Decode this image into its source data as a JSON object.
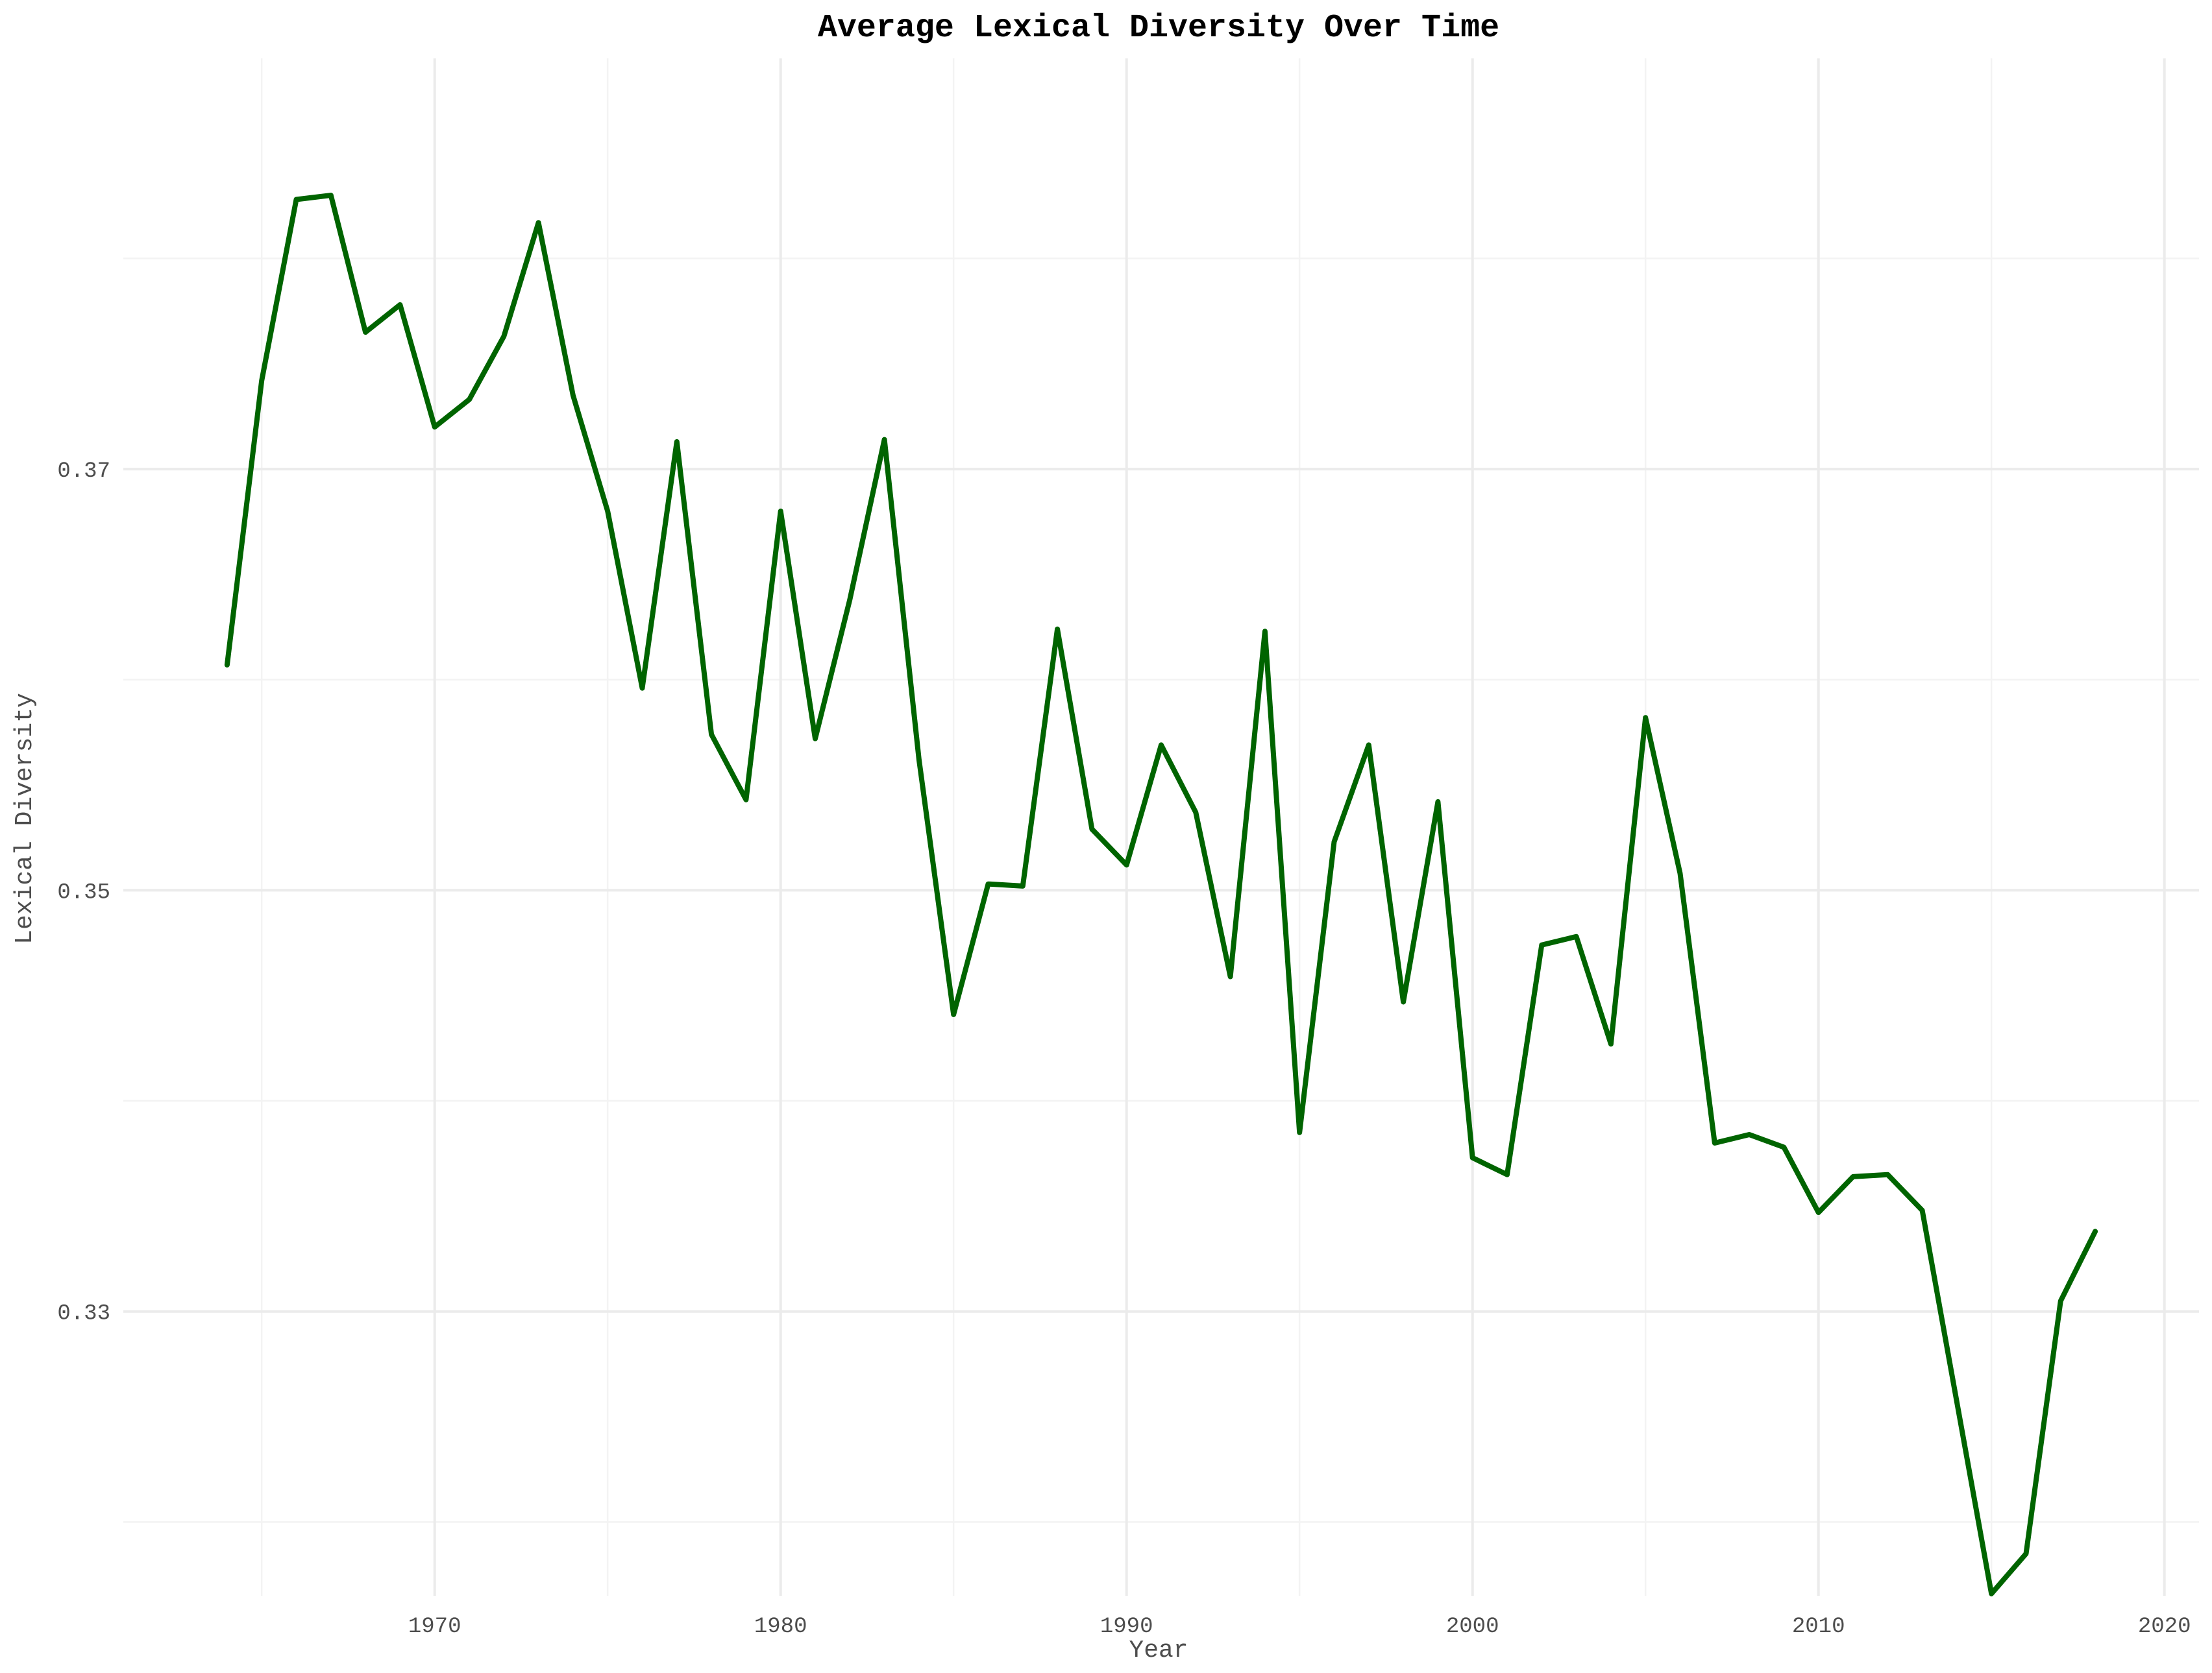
{
  "chart_data": {
    "type": "line",
    "title": "Average Lexical Diversity Over Time",
    "xlabel": "Year",
    "ylabel": "Lexical Diversity",
    "xlim": [
      1961,
      2021
    ],
    "ylim": [
      0.3165,
      0.3895
    ],
    "x_ticks": [
      1970,
      1980,
      1990,
      2000,
      2010,
      2020
    ],
    "x_tick_labels": [
      "1970",
      "1980",
      "1990",
      "2000",
      "2010",
      "2020"
    ],
    "y_ticks": [
      0.33,
      0.35,
      0.37
    ],
    "y_tick_labels": [
      "0.33",
      "0.35",
      "0.37"
    ],
    "grid": true,
    "line_color": "#006400",
    "series": [
      {
        "x": [
          1964,
          1965,
          1966,
          1967,
          1968,
          1969,
          1970,
          1971,
          1972,
          1973,
          1974,
          1975,
          1976,
          1977,
          1978,
          1979,
          1980,
          1981,
          1982,
          1983,
          1984,
          1985,
          1986,
          1987,
          1988,
          1989,
          1990,
          1991,
          1992,
          1993,
          1994,
          1995,
          1996,
          1997,
          1998,
          1999,
          2000,
          2001,
          2002,
          2003,
          2004,
          2005,
          2006,
          2007,
          2008,
          2009,
          2010,
          2011,
          2012,
          2013,
          2014,
          2015,
          2016,
          2017,
          2018
        ],
        "values": [
          0.3607,
          0.3742,
          0.3828,
          0.383,
          0.3765,
          0.3778,
          0.372,
          0.3733,
          0.3763,
          0.3817,
          0.3735,
          0.368,
          0.3596,
          0.3713,
          0.3574,
          0.3543,
          0.368,
          0.3572,
          0.3638,
          0.3714,
          0.3562,
          0.3441,
          0.3503,
          0.3502,
          0.3624,
          0.3529,
          0.3512,
          0.3569,
          0.3537,
          0.3459,
          0.3623,
          0.3385,
          0.3523,
          0.3569,
          0.3447,
          0.3542,
          0.3373,
          0.3365,
          0.3474,
          0.3478,
          0.3427,
          0.3582,
          0.3508,
          0.338,
          0.3384,
          0.3378,
          0.3347,
          0.3364,
          0.3365,
          0.3348,
          0.3257,
          0.3166,
          0.3185,
          0.3305,
          0.3338
        ]
      }
    ]
  }
}
